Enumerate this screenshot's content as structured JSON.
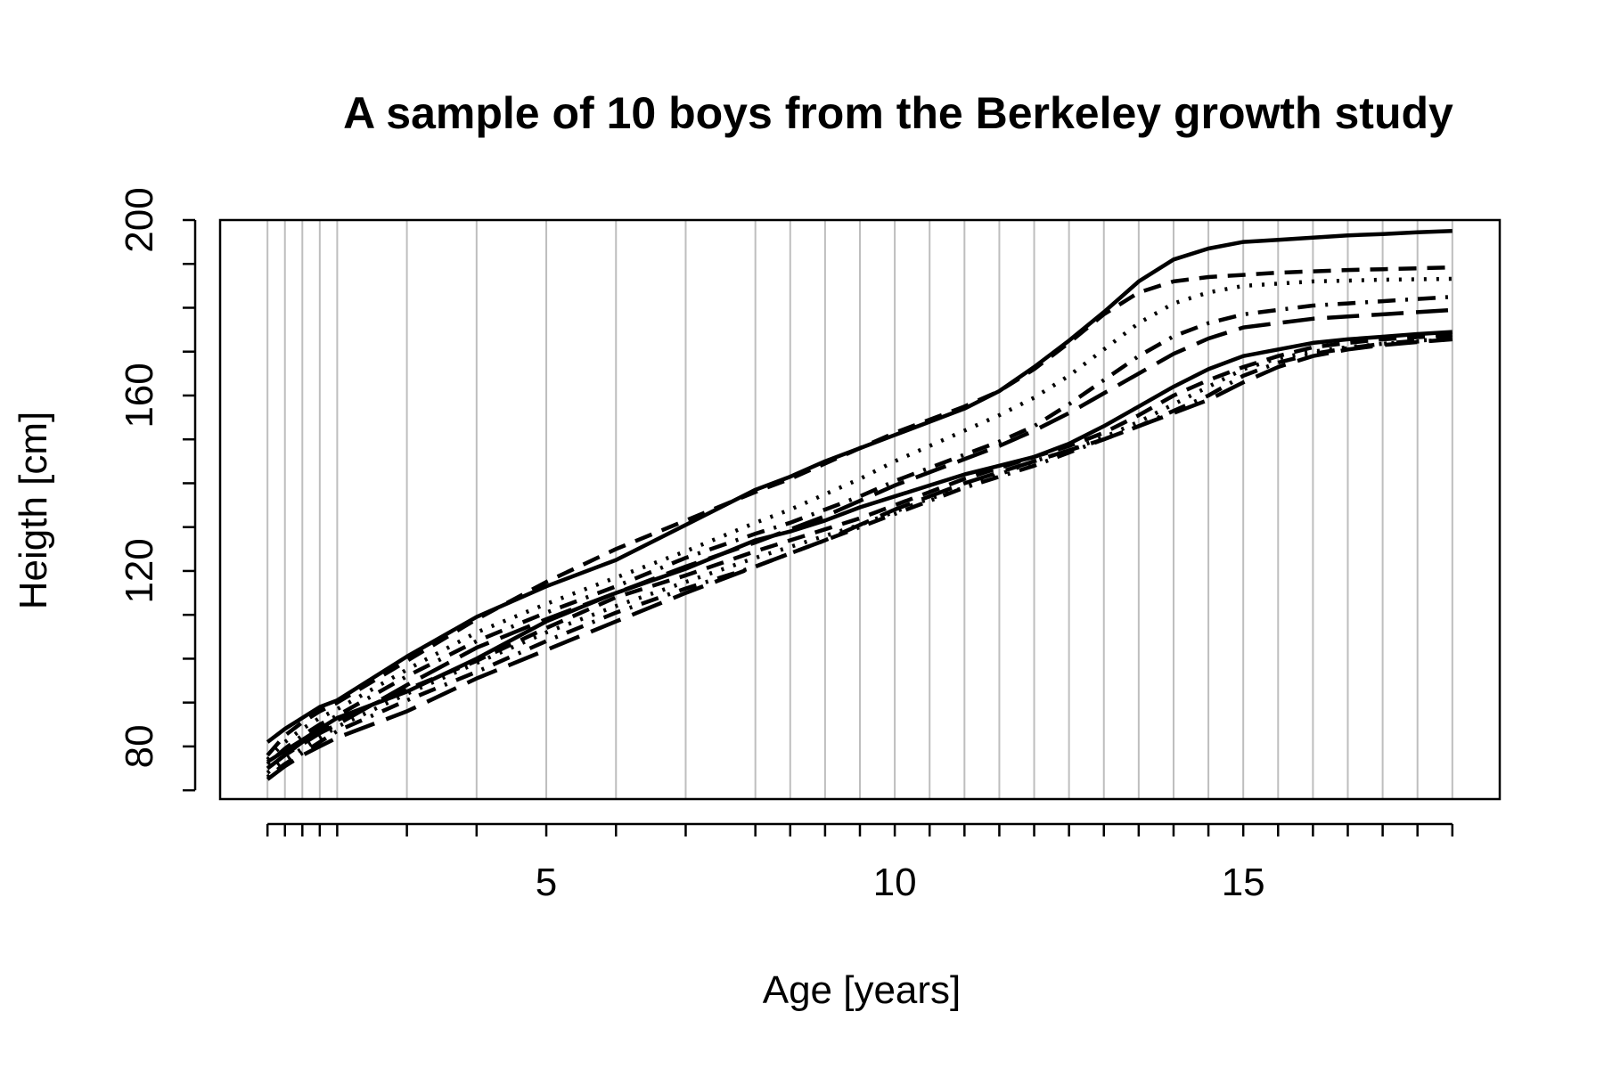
{
  "chart_data": {
    "type": "line",
    "title": "A sample of 10 boys from the Berkeley growth study",
    "xlabel": "Age [years]",
    "ylabel": "Heigth [cm]",
    "xlim": [
      0.32,
      18.68
    ],
    "ylim": [
      68,
      200
    ],
    "xticks": [
      5,
      10,
      15
    ],
    "yticks": [
      80,
      120,
      160,
      200
    ],
    "grid": true,
    "grid_x": [
      1,
      1.25,
      1.5,
      1.75,
      2,
      3,
      4,
      5,
      6,
      7,
      8,
      8.5,
      9,
      9.5,
      10,
      10.5,
      11,
      11.5,
      12,
      12.5,
      13,
      13.5,
      14,
      14.5,
      15,
      15.5,
      16,
      16.5,
      17,
      17.5,
      18
    ],
    "line_color": "#000000",
    "grid_color": "#bebebe",
    "x": [
      1,
      1.25,
      1.5,
      1.75,
      2,
      3,
      4,
      5,
      6,
      7,
      8,
      8.5,
      9,
      9.5,
      10,
      10.5,
      11,
      11.5,
      12,
      12.5,
      13,
      13.5,
      14,
      14.5,
      15,
      15.5,
      16,
      16.5,
      17,
      17.5,
      18
    ],
    "series": [
      {
        "linestyle": "solid",
        "values": [
          81.0,
          84.0,
          86.5,
          89.0,
          90.5,
          100.5,
          109.5,
          116.5,
          122.5,
          130.5,
          138.5,
          141.5,
          145.0,
          148.0,
          151.0,
          154.0,
          157.0,
          161.0,
          166.5,
          172.5,
          179.0,
          186.0,
          191.0,
          193.5,
          195.0,
          195.5,
          196.0,
          196.5,
          196.8,
          197.2,
          197.5
        ]
      },
      {
        "linestyle": "dashed",
        "values": [
          78.0,
          82.5,
          85.5,
          88.0,
          90.0,
          99.5,
          109.0,
          117.5,
          125.0,
          131.5,
          138.0,
          141.0,
          144.5,
          148.0,
          151.5,
          154.5,
          157.5,
          161.0,
          166.0,
          172.0,
          178.5,
          183.5,
          186.0,
          187.0,
          187.5,
          188.0,
          188.3,
          188.6,
          188.8,
          189.0,
          189.2
        ]
      },
      {
        "linestyle": "dotted",
        "values": [
          77.0,
          81.0,
          84.0,
          86.5,
          88.5,
          97.5,
          106.0,
          112.5,
          118.5,
          124.5,
          131.0,
          134.0,
          137.5,
          141.0,
          145.0,
          148.5,
          152.0,
          155.5,
          159.5,
          164.5,
          170.5,
          176.5,
          181.0,
          183.5,
          185.0,
          185.5,
          186.0,
          186.2,
          186.4,
          186.5,
          186.6
        ]
      },
      {
        "linestyle": "dotdash",
        "values": [
          76.0,
          79.5,
          82.5,
          85.0,
          87.0,
          96.0,
          104.0,
          110.5,
          116.5,
          123.0,
          128.5,
          131.0,
          134.0,
          137.0,
          140.5,
          143.5,
          146.5,
          149.5,
          153.0,
          158.0,
          163.5,
          169.0,
          173.5,
          176.5,
          178.5,
          179.5,
          180.5,
          181.0,
          181.5,
          182.0,
          182.5
        ]
      },
      {
        "linestyle": "longdash",
        "values": [
          75.0,
          78.0,
          80.5,
          83.0,
          85.0,
          94.0,
          102.5,
          109.0,
          115.0,
          121.0,
          126.5,
          129.5,
          132.5,
          136.0,
          139.5,
          142.5,
          145.5,
          148.5,
          152.0,
          156.0,
          160.5,
          165.0,
          169.5,
          173.0,
          175.5,
          176.5,
          177.5,
          178.0,
          178.5,
          179.0,
          179.5
        ]
      },
      {
        "linestyle": "solid",
        "values": [
          76.5,
          79.0,
          81.5,
          84.0,
          86.5,
          92.5,
          100.0,
          108.5,
          115.0,
          120.5,
          127.0,
          129.0,
          131.5,
          134.5,
          137.0,
          139.5,
          142.0,
          144.0,
          146.0,
          149.0,
          153.0,
          157.5,
          162.0,
          166.0,
          169.0,
          170.5,
          172.0,
          172.8,
          173.4,
          174.0,
          174.5
        ]
      },
      {
        "linestyle": "dashed",
        "values": [
          75.0,
          78.0,
          81.0,
          83.5,
          86.0,
          93.0,
          99.5,
          107.0,
          114.0,
          119.0,
          124.5,
          127.0,
          129.5,
          132.0,
          135.0,
          138.0,
          141.0,
          143.5,
          146.0,
          148.5,
          151.5,
          155.5,
          160.0,
          163.5,
          166.5,
          169.0,
          171.0,
          172.0,
          172.8,
          173.3,
          173.8
        ]
      },
      {
        "linestyle": "dotted",
        "values": [
          74.0,
          77.0,
          79.5,
          82.0,
          84.5,
          92.0,
          99.0,
          106.0,
          112.0,
          117.5,
          123.0,
          125.5,
          128.0,
          130.5,
          133.5,
          136.5,
          139.0,
          142.0,
          145.0,
          147.5,
          150.5,
          154.0,
          158.0,
          162.0,
          166.0,
          168.5,
          170.0,
          171.0,
          171.8,
          172.3,
          172.8
        ]
      },
      {
        "linestyle": "dotdash",
        "values": [
          73.0,
          76.0,
          78.5,
          81.0,
          83.5,
          90.5,
          97.0,
          104.0,
          110.5,
          116.0,
          121.0,
          124.0,
          127.0,
          130.0,
          133.0,
          136.0,
          139.0,
          141.5,
          144.0,
          147.0,
          150.0,
          153.0,
          156.5,
          160.0,
          164.5,
          167.5,
          169.5,
          170.8,
          171.8,
          172.5,
          173.0
        ]
      },
      {
        "linestyle": "longdash",
        "values": [
          72.5,
          75.5,
          78.0,
          80.0,
          82.0,
          88.0,
          95.5,
          102.0,
          108.5,
          115.0,
          121.0,
          124.0,
          127.0,
          130.5,
          134.0,
          137.0,
          140.0,
          142.5,
          145.0,
          147.5,
          150.0,
          153.0,
          156.0,
          159.0,
          163.0,
          166.5,
          169.0,
          170.5,
          171.5,
          172.2,
          172.8
        ]
      }
    ]
  }
}
